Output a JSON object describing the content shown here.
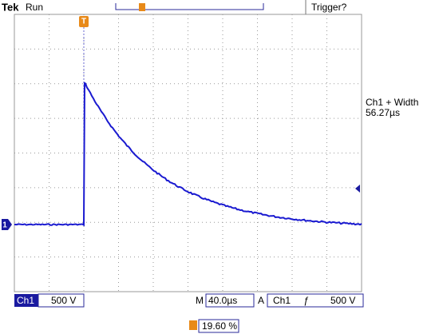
{
  "header": {
    "brand": "Tek",
    "status": "Run",
    "trigger_status": "Trigger?"
  },
  "measurement": {
    "label": "Ch1 + Width",
    "value": "56.27µs"
  },
  "markers": {
    "channel": "1",
    "trigger": "T"
  },
  "status_bar": {
    "channel": "Ch1",
    "channel_scale": "500 V",
    "time_prefix": "M",
    "time_scale": "40.0µs",
    "trigger_prefix": "A",
    "trigger_source": "Ch1",
    "trigger_slope": "ƒ",
    "trigger_level": "500 V"
  },
  "footer": {
    "trigger_position": "19.60 %"
  }
}
